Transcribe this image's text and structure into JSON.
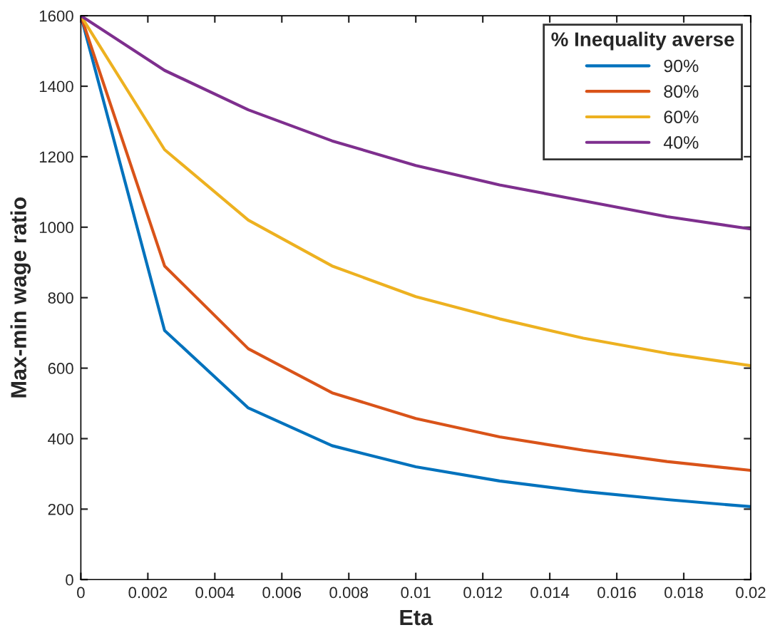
{
  "chart_data": {
    "type": "line",
    "xlabel": "Eta",
    "ylabel": "Max-min wage ratio",
    "legend_title": "% Inequality averse",
    "legend": "top right",
    "grid": false,
    "x": [
      0,
      0.0025,
      0.005,
      0.0075,
      0.01,
      0.0125,
      0.015,
      0.0175,
      0.02
    ],
    "series": [
      {
        "name": "90%",
        "color": "#0072bd",
        "values": [
          1600,
          707,
          487,
          380,
          320,
          280,
          250,
          227,
          207
        ]
      },
      {
        "name": "80%",
        "color": "#d95319",
        "values": [
          1600,
          890,
          655,
          530,
          457,
          405,
          367,
          335,
          310
        ]
      },
      {
        "name": "60%",
        "color": "#edb120",
        "values": [
          1600,
          1220,
          1020,
          890,
          803,
          740,
          685,
          642,
          607
        ]
      },
      {
        "name": "40%",
        "color": "#7e2f8e",
        "values": [
          1600,
          1445,
          1333,
          1245,
          1175,
          1120,
          1075,
          1030,
          995
        ]
      }
    ],
    "xlim": [
      0,
      0.02
    ],
    "ylim": [
      0,
      1600
    ],
    "xticks": [
      0,
      0.002,
      0.004,
      0.006,
      0.008,
      0.01,
      0.012,
      0.014,
      0.016,
      0.018,
      0.02
    ],
    "yticks": [
      0,
      200,
      400,
      600,
      800,
      1000,
      1200,
      1400,
      1600
    ]
  }
}
